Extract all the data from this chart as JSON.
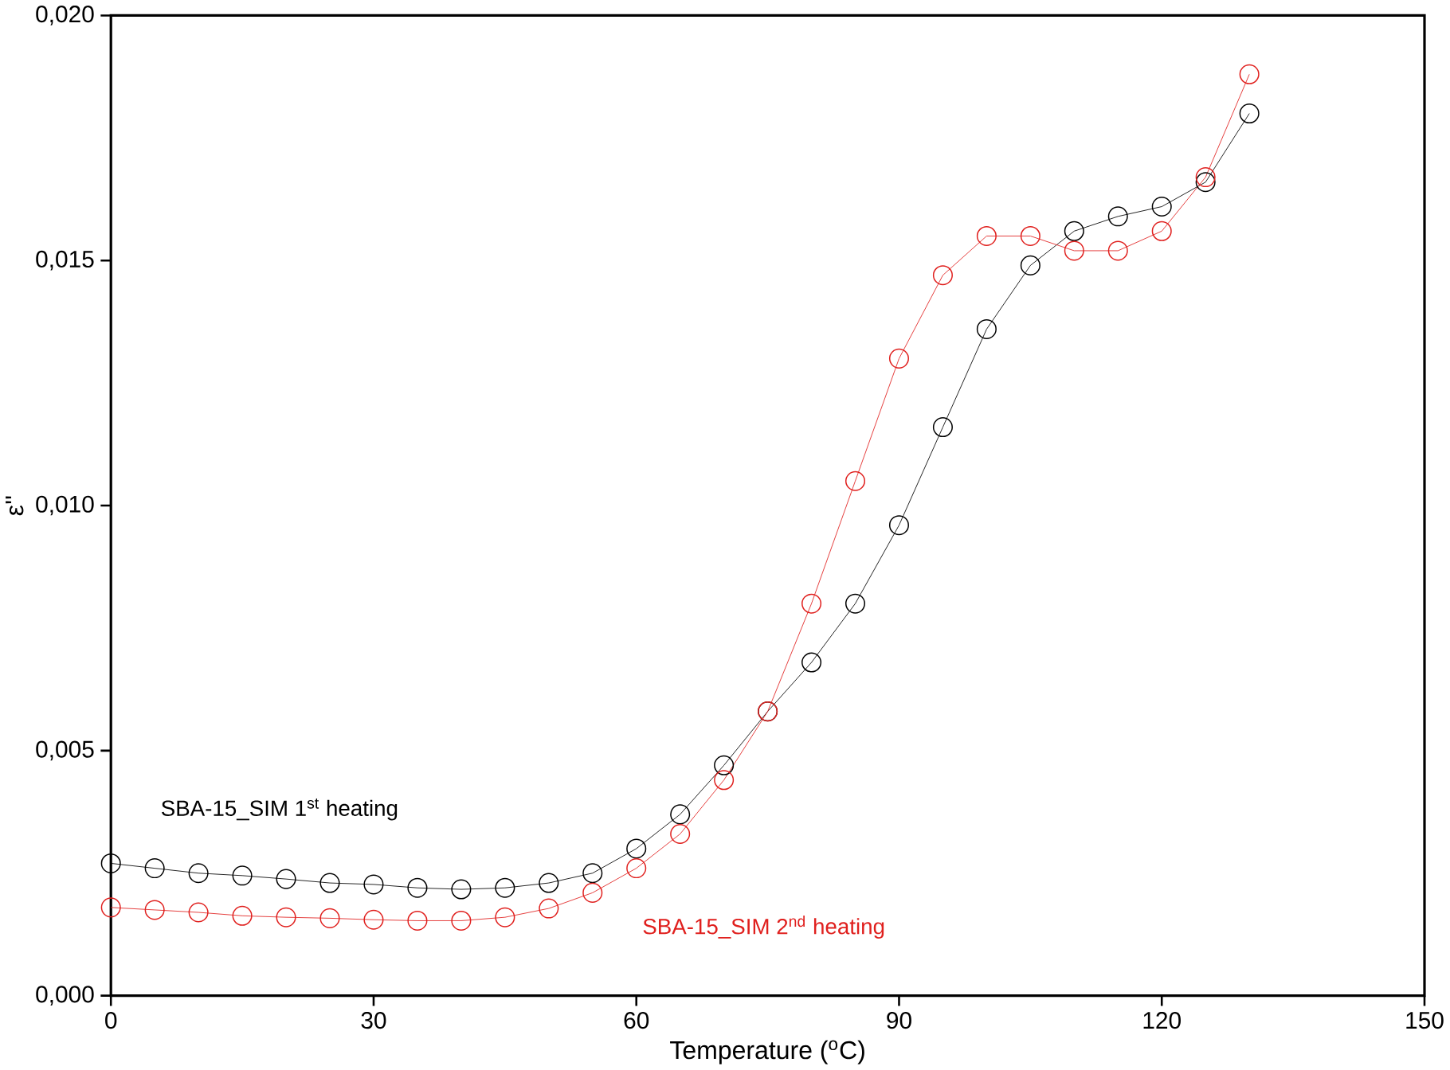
{
  "chart_data": {
    "type": "line",
    "xlabel": "Temperature ($^{o}$C)",
    "ylabel": "ε''",
    "x": [
      0,
      5,
      10,
      15,
      20,
      25,
      30,
      35,
      40,
      45,
      50,
      55,
      60,
      65,
      70,
      75,
      80,
      85,
      90,
      95,
      100,
      105,
      110,
      115,
      120,
      125,
      130
    ],
    "series": [
      {
        "name": "SBA-15_SIM 1$^{st}$ heating",
        "color": "#000000",
        "values": [
          0.0027,
          0.0026,
          0.0025,
          0.00245,
          0.00238,
          0.0023,
          0.00227,
          0.0022,
          0.00217,
          0.0022,
          0.0023,
          0.0025,
          0.003,
          0.0037,
          0.0047,
          0.0058,
          0.0068,
          0.008,
          0.0096,
          0.0116,
          0.0136,
          0.0149,
          0.0156,
          0.0159,
          0.0161,
          0.0166,
          0.018
        ]
      },
      {
        "name": "SBA-15_SIM 2$^{nd}$ heating",
        "color": "#e0201e",
        "values": [
          0.0018,
          0.00175,
          0.0017,
          0.00163,
          0.0016,
          0.00158,
          0.00155,
          0.00153,
          0.00153,
          0.0016,
          0.00178,
          0.0021,
          0.0026,
          0.0033,
          0.0044,
          0.0058,
          0.008,
          0.0105,
          0.013,
          0.0147,
          0.0155,
          0.0155,
          0.0152,
          0.0152,
          0.0156,
          0.0167,
          0.0188
        ]
      }
    ],
    "xlim": [
      0,
      150
    ],
    "xticks": [
      0,
      30,
      60,
      90,
      120,
      150
    ],
    "ylim": [
      0,
      0.02
    ],
    "yticks": [
      {
        "value": 0,
        "label": "0,000"
      },
      {
        "value": 0.005,
        "label": "0,005"
      },
      {
        "value": 0.01,
        "label": "0,010"
      },
      {
        "value": 0.015,
        "label": "0,015"
      },
      {
        "value": 0.02,
        "label": "0,020"
      }
    ],
    "marker": "circle",
    "line_style": "solid",
    "grid": false,
    "legend": false
  }
}
